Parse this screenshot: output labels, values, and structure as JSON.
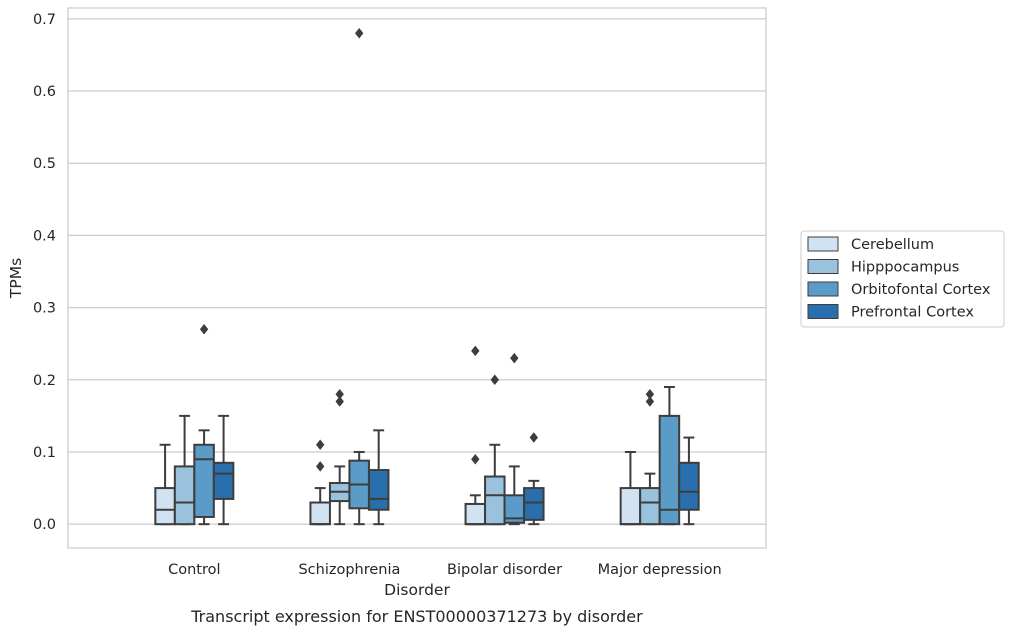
{
  "chart_data": {
    "type": "box",
    "caption": "Transcript expression for ENST00000371273 by disorder",
    "xlabel": "Disorder",
    "ylabel": "TPMs",
    "ylim": [
      -0.033,
      0.715
    ],
    "yticks": [
      0.0,
      0.1,
      0.2,
      0.3,
      0.4,
      0.5,
      0.6,
      0.7
    ],
    "ytick_labels": [
      "0.0",
      "0.1",
      "0.2",
      "0.3",
      "0.4",
      "0.5",
      "0.6",
      "0.7"
    ],
    "grid": "horizontal",
    "legend_position": "right-center",
    "categories": [
      "Control",
      "Schizophrenia",
      "Bipolar disorder",
      "Major depression"
    ],
    "series": [
      {
        "name": "Cerebellum",
        "color": "#d1e2f2",
        "boxes": [
          {
            "whislo": 0.0,
            "q1": 0.0,
            "med": 0.02,
            "q3": 0.05,
            "whishi": 0.11,
            "fliers": []
          },
          {
            "whislo": 0.0,
            "q1": 0.0,
            "med": 0.0,
            "q3": 0.03,
            "whishi": 0.05,
            "fliers": [
              0.08,
              0.11
            ]
          },
          {
            "whislo": 0.0,
            "q1": 0.0,
            "med": 0.0,
            "q3": 0.028,
            "whishi": 0.04,
            "fliers": [
              0.09,
              0.24
            ]
          },
          {
            "whislo": 0.0,
            "q1": 0.0,
            "med": 0.0,
            "q3": 0.05,
            "whishi": 0.1,
            "fliers": []
          }
        ]
      },
      {
        "name": "Hipppocampus",
        "color": "#9ac2dc",
        "boxes": [
          {
            "whislo": 0.0,
            "q1": 0.0,
            "med": 0.03,
            "q3": 0.08,
            "whishi": 0.15,
            "fliers": []
          },
          {
            "whislo": 0.0,
            "q1": 0.032,
            "med": 0.045,
            "q3": 0.057,
            "whishi": 0.08,
            "fliers": [
              0.17,
              0.18
            ]
          },
          {
            "whislo": 0.0,
            "q1": 0.0,
            "med": 0.04,
            "q3": 0.066,
            "whishi": 0.11,
            "fliers": [
              0.2
            ]
          },
          {
            "whislo": 0.0,
            "q1": 0.0,
            "med": 0.03,
            "q3": 0.05,
            "whishi": 0.07,
            "fliers": [
              0.17,
              0.18
            ]
          }
        ]
      },
      {
        "name": "Orbitofontal Cortex",
        "color": "#5b9bc8",
        "boxes": [
          {
            "whislo": 0.0,
            "q1": 0.01,
            "med": 0.09,
            "q3": 0.11,
            "whishi": 0.13,
            "fliers": [
              0.27
            ]
          },
          {
            "whislo": 0.0,
            "q1": 0.022,
            "med": 0.055,
            "q3": 0.088,
            "whishi": 0.1,
            "fliers": [
              0.68
            ]
          },
          {
            "whislo": 0.0,
            "q1": 0.002,
            "med": 0.008,
            "q3": 0.04,
            "whishi": 0.08,
            "fliers": [
              0.23
            ]
          },
          {
            "whislo": 0.0,
            "q1": 0.0,
            "med": 0.02,
            "q3": 0.15,
            "whishi": 0.19,
            "fliers": []
          }
        ]
      },
      {
        "name": "Prefrontal Cortex",
        "color": "#2a6fad",
        "boxes": [
          {
            "whislo": 0.0,
            "q1": 0.035,
            "med": 0.07,
            "q3": 0.085,
            "whishi": 0.15,
            "fliers": []
          },
          {
            "whislo": 0.0,
            "q1": 0.02,
            "med": 0.035,
            "q3": 0.075,
            "whishi": 0.13,
            "fliers": []
          },
          {
            "whislo": 0.0,
            "q1": 0.006,
            "med": 0.03,
            "q3": 0.05,
            "whishi": 0.06,
            "fliers": [
              0.12
            ]
          },
          {
            "whislo": 0.0,
            "q1": 0.02,
            "med": 0.045,
            "q3": 0.085,
            "whishi": 0.12,
            "fliers": []
          }
        ]
      }
    ]
  }
}
